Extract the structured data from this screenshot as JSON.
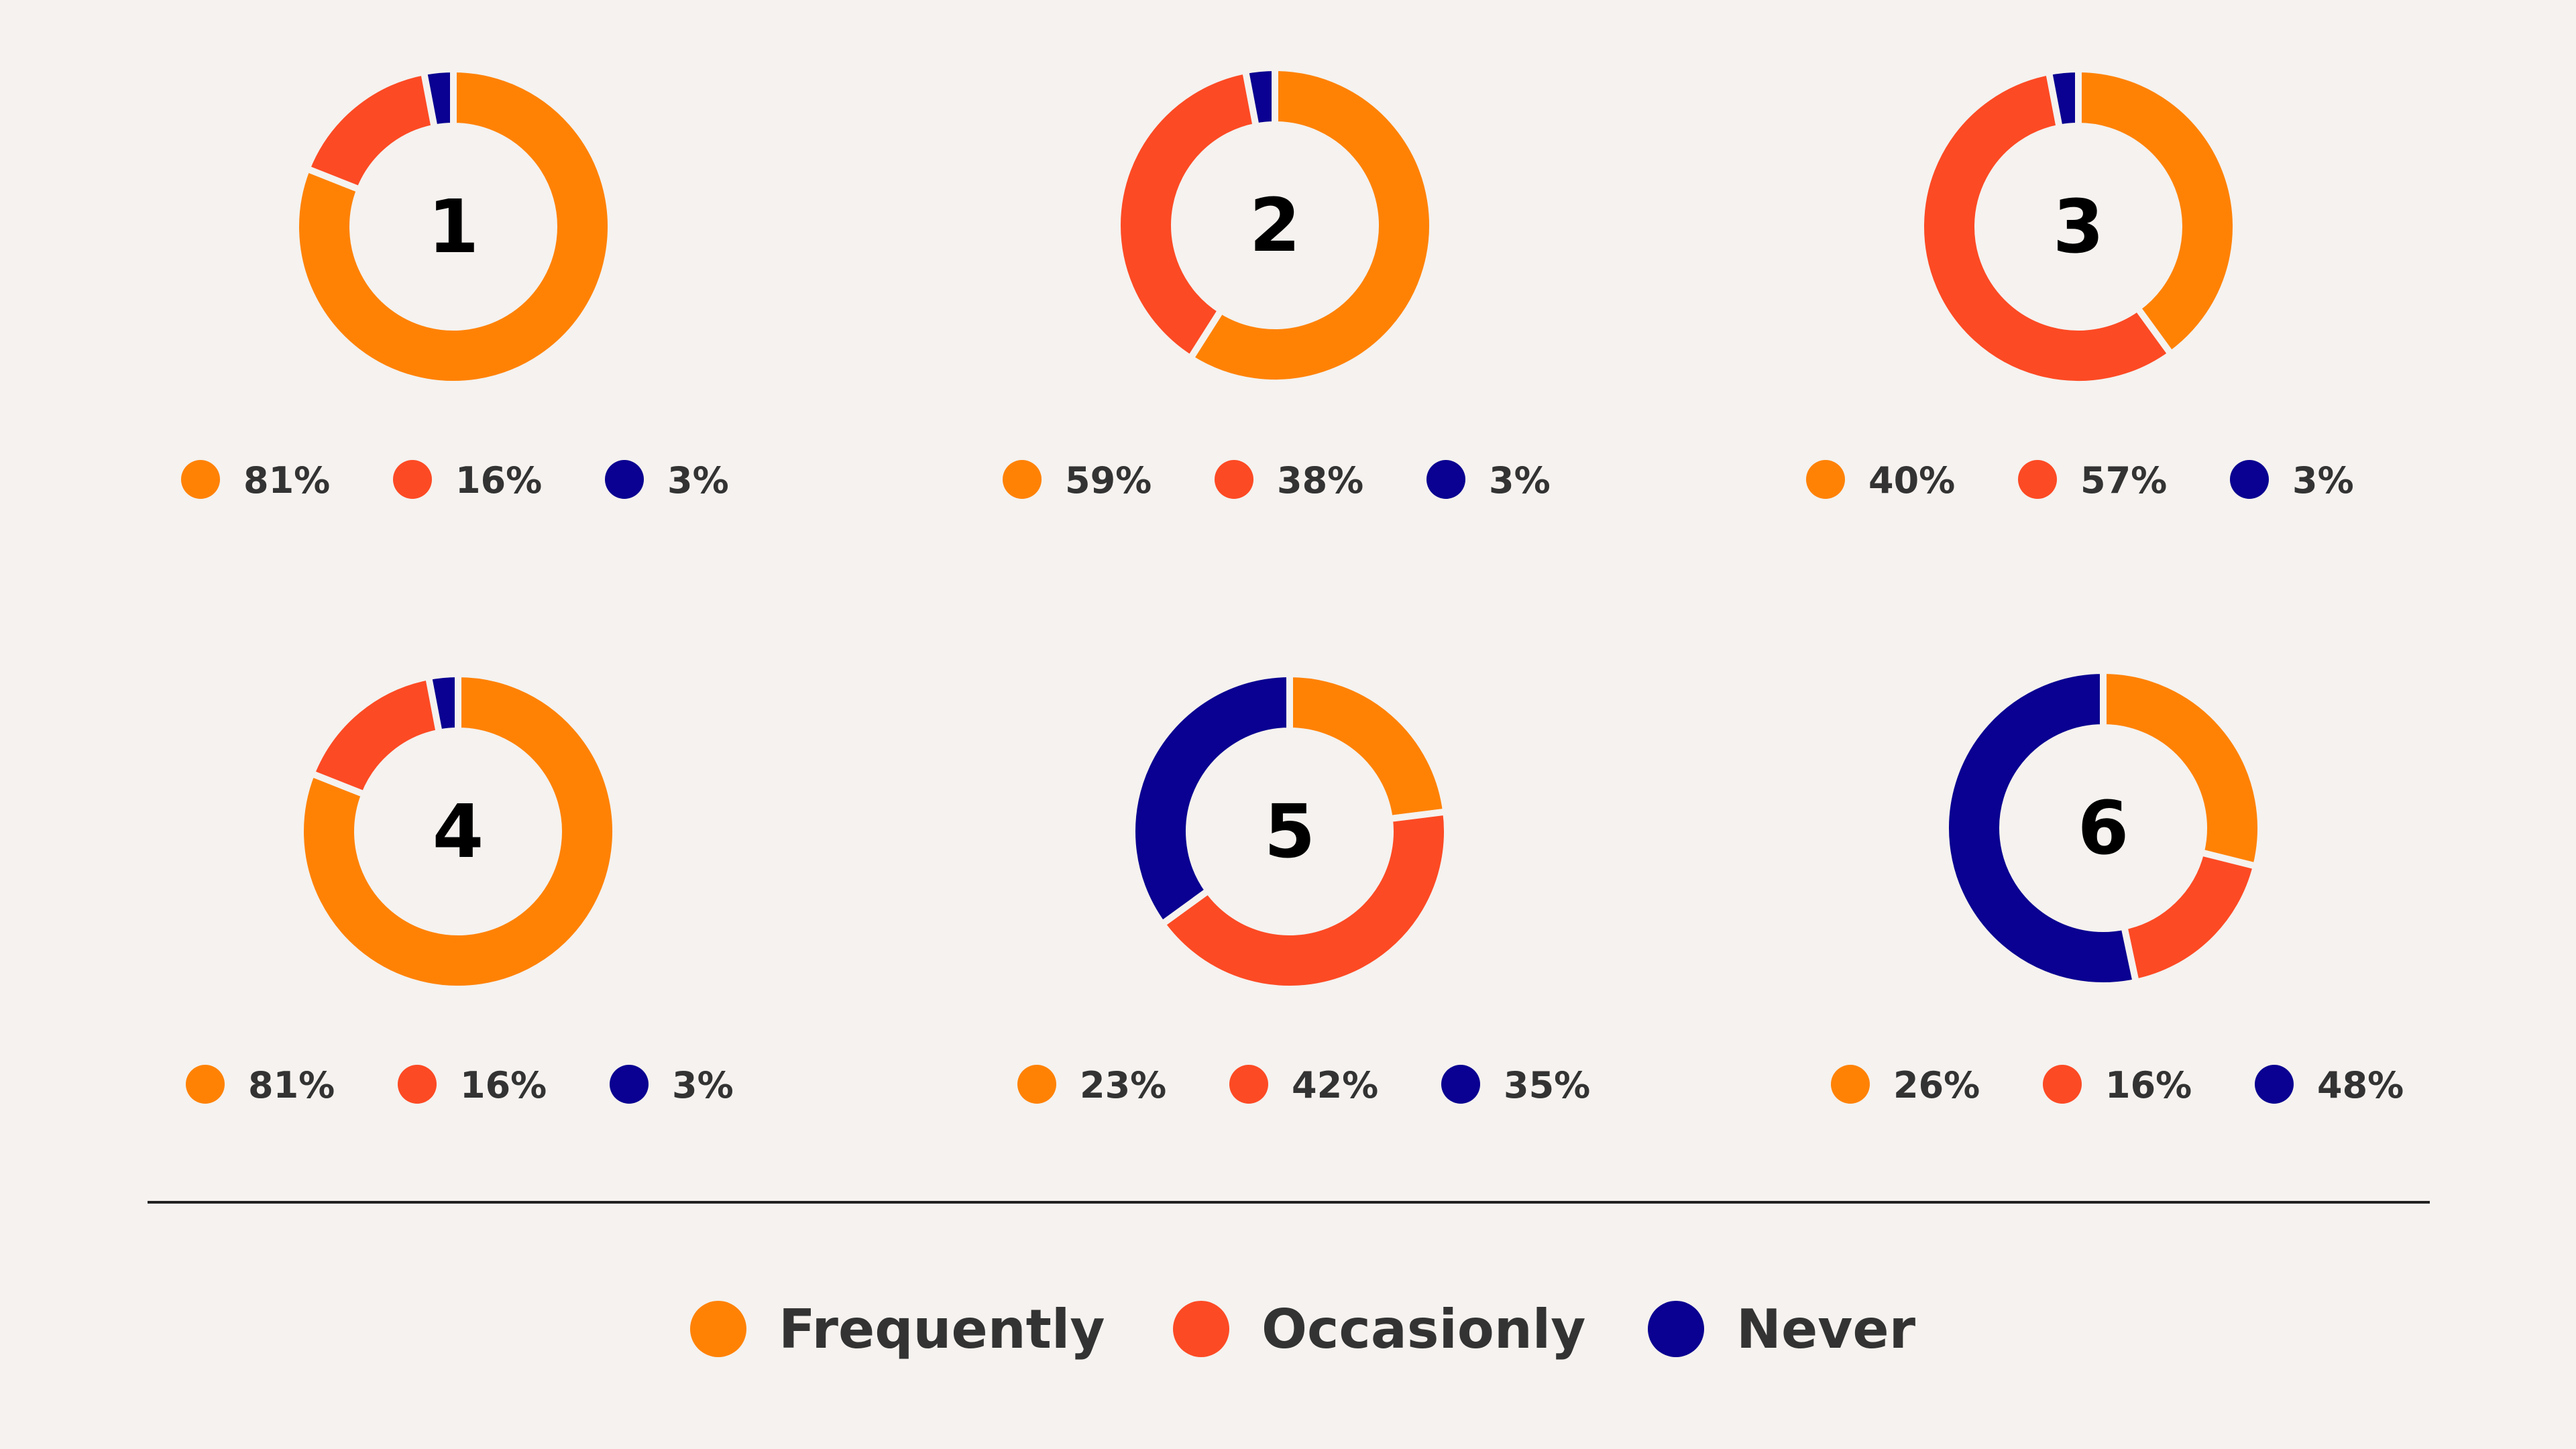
{
  "chart_data": {
    "type": "donut",
    "categories": [
      "Frequently",
      "Occasionly",
      "Never"
    ],
    "colors": [
      "#FF8205",
      "#FC4A24",
      "#0A0091"
    ],
    "charts": [
      {
        "label": "1",
        "values": [
          81,
          16,
          3
        ],
        "value_labels": [
          "81%",
          "16%",
          "3%"
        ]
      },
      {
        "label": "2",
        "values": [
          59,
          38,
          3
        ],
        "value_labels": [
          "59%",
          "38%",
          "3%"
        ]
      },
      {
        "label": "3",
        "values": [
          40,
          57,
          3
        ],
        "value_labels": [
          "40%",
          "57%",
          "3%"
        ]
      },
      {
        "label": "4",
        "values": [
          81,
          16,
          3
        ],
        "value_labels": [
          "81%",
          "16%",
          "3%"
        ]
      },
      {
        "label": "5",
        "values": [
          23,
          42,
          35
        ],
        "value_labels": [
          "23%",
          "42%",
          "35%"
        ]
      },
      {
        "label": "6",
        "values": [
          26,
          16,
          48
        ],
        "value_labels": [
          "26%",
          "16%",
          "48%"
        ]
      }
    ],
    "legend": {
      "placement": "bottom",
      "entries": [
        "Frequently",
        "Occasionly",
        "Never"
      ]
    }
  }
}
